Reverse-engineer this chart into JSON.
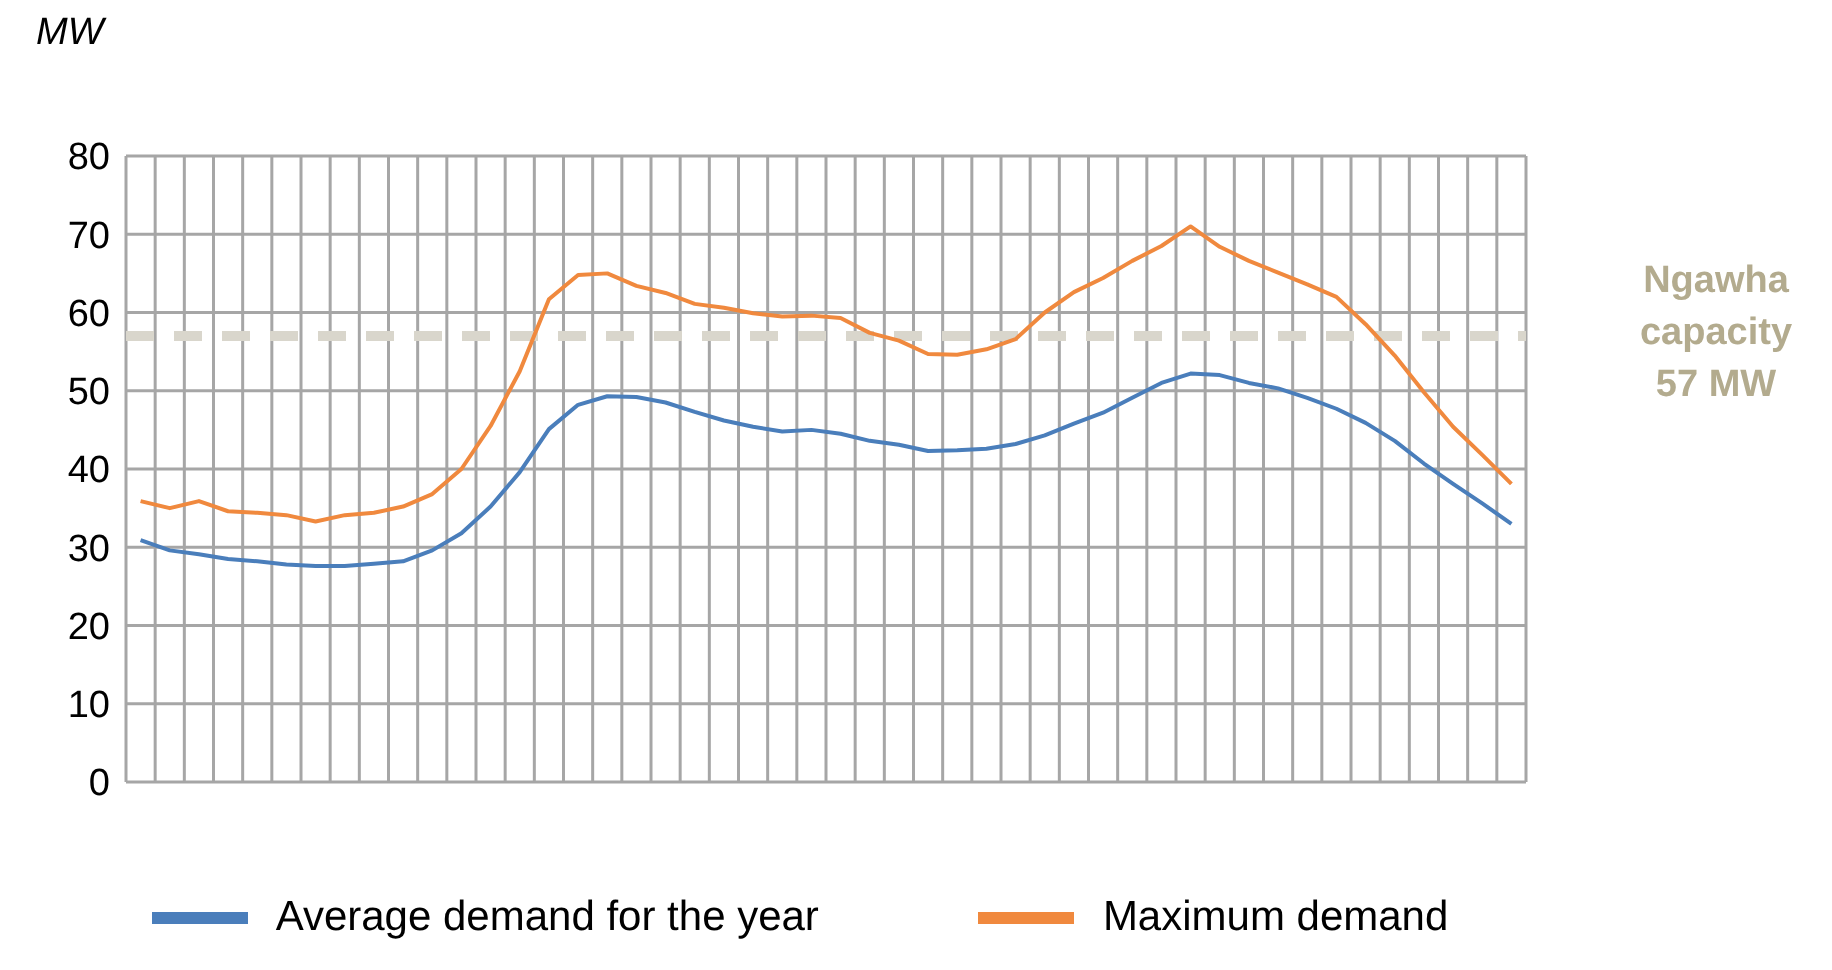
{
  "chart_data": {
    "type": "line",
    "ylabel": "MW",
    "categories": [
      null,
      null,
      null,
      null,
      null,
      null,
      null,
      null,
      null,
      null,
      null,
      null,
      null,
      null,
      null,
      null,
      null,
      null,
      null,
      null,
      null,
      null,
      null,
      null,
      null,
      null,
      null,
      null,
      null,
      null,
      null,
      null,
      null,
      null,
      null,
      null,
      null,
      null,
      null,
      null,
      null,
      null,
      null,
      null,
      null,
      null,
      null,
      null
    ],
    "series": [
      {
        "name": "Average demand for the year",
        "color": "#4a7ebb",
        "values": [
          30.9,
          29.6,
          29.1,
          28.5,
          28.2,
          27.8,
          27.6,
          27.6,
          27.9,
          28.2,
          29.6,
          31.8,
          35.2,
          39.6,
          45.1,
          48.2,
          49.3,
          49.2,
          48.5,
          47.3,
          46.2,
          45.4,
          44.8,
          45.0,
          44.5,
          43.6,
          43.1,
          42.3,
          42.4,
          42.6,
          43.2,
          44.3,
          45.8,
          47.2,
          49.1,
          51.0,
          52.2,
          52.0,
          51.0,
          50.3,
          49.1,
          47.7,
          45.9,
          43.6,
          40.7,
          38.1,
          35.6,
          33.0
        ]
      },
      {
        "name": "Maximum demand",
        "color": "#f0893e",
        "values": [
          35.9,
          35.0,
          35.9,
          34.6,
          34.4,
          34.1,
          33.3,
          34.1,
          34.4,
          35.2,
          36.8,
          40.0,
          45.5,
          52.5,
          61.7,
          64.8,
          65.0,
          63.4,
          62.5,
          61.1,
          60.6,
          59.9,
          59.5,
          59.6,
          59.3,
          57.4,
          56.4,
          54.7,
          54.6,
          55.3,
          56.6,
          60.0,
          62.6,
          64.4,
          66.6,
          68.5,
          71.0,
          68.4,
          66.6,
          65.1,
          63.6,
          62.0,
          58.5,
          54.5,
          49.8,
          45.4,
          41.8,
          38.1
        ]
      }
    ],
    "ylim": [
      0,
      80
    ],
    "yticks": [
      0,
      10,
      20,
      30,
      40,
      50,
      60,
      70,
      80
    ],
    "grid": true,
    "legend": "bottom",
    "marker": "none",
    "line_style": "solid",
    "ref_lines": [
      {
        "axis": "y",
        "value": 57,
        "label": "Ngawha capacity 57 MW",
        "color": "#d9d6cc",
        "line_style": "dashed"
      }
    ]
  }
}
